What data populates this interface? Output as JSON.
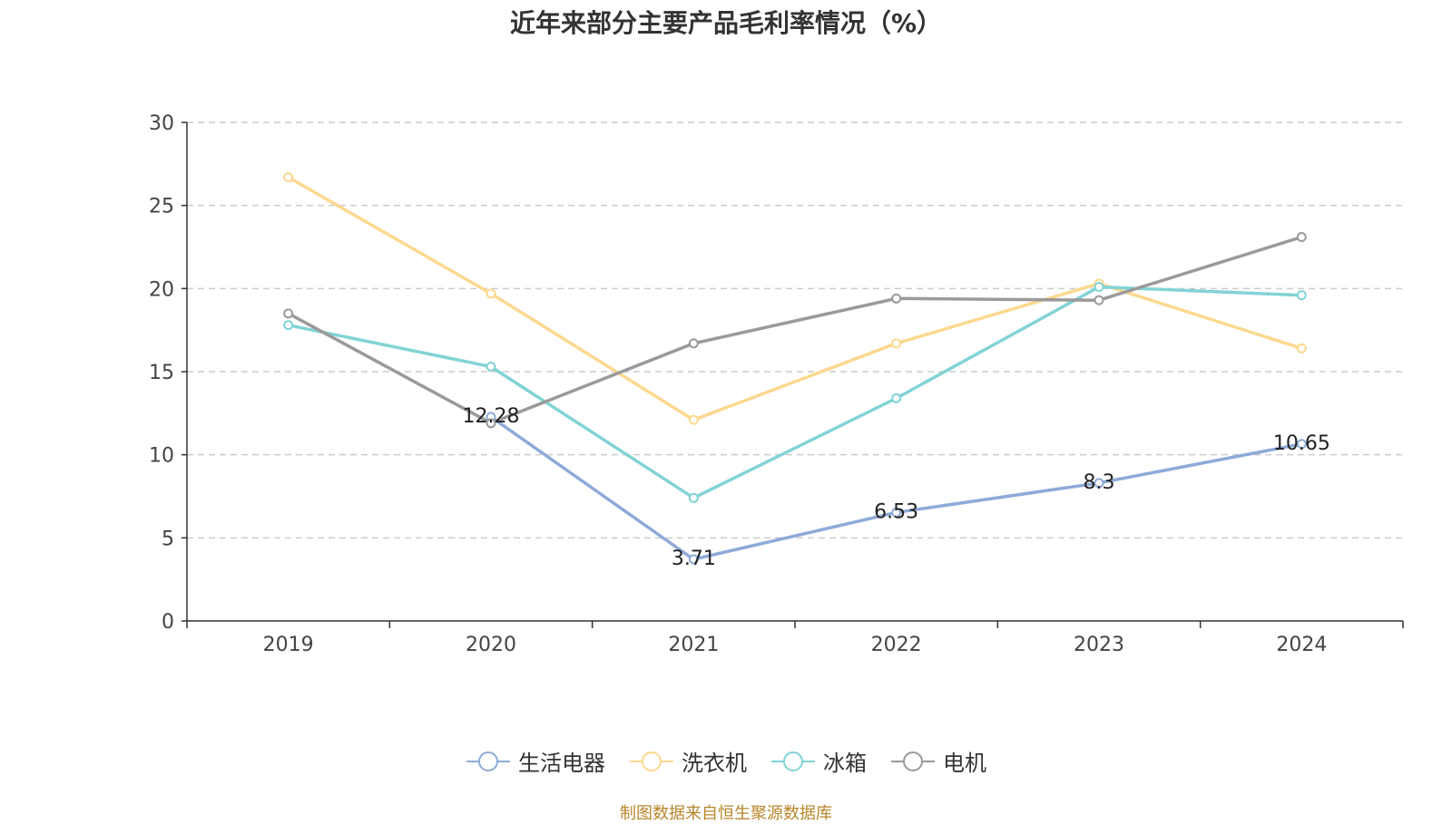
{
  "chart_data": {
    "type": "line",
    "title": "近年来部分主要产品毛利率情况（%）",
    "categories": [
      "2019",
      "2020",
      "2021",
      "2022",
      "2023",
      "2024"
    ],
    "ylim": [
      0,
      30
    ],
    "yticks": [
      "0",
      "5",
      "10",
      "15",
      "20",
      "25",
      "30"
    ],
    "xlabel": "",
    "ylabel": "",
    "grid": "horizontal dashed",
    "legend_position": "bottom",
    "series": [
      {
        "name": "生活电器",
        "color": "#8eaad8",
        "values": [
          null,
          12.28,
          3.71,
          6.53,
          8.3,
          10.65
        ],
        "labels": [
          "",
          "12.28",
          "3.71",
          "6.53",
          "8.3",
          "10.65"
        ]
      },
      {
        "name": "洗衣机",
        "color": "#fcd88f",
        "values": [
          26.7,
          19.7,
          12.1,
          16.7,
          20.3,
          16.4
        ]
      },
      {
        "name": "冰箱",
        "color": "#82d3d5",
        "values": [
          17.8,
          15.3,
          7.4,
          13.4,
          20.1,
          19.6
        ]
      },
      {
        "name": "电机",
        "color": "#9a9a9a",
        "values": [
          18.5,
          11.9,
          16.7,
          19.4,
          19.3,
          23.1
        ]
      }
    ]
  },
  "source": "制图数据来自恒生聚源数据库"
}
